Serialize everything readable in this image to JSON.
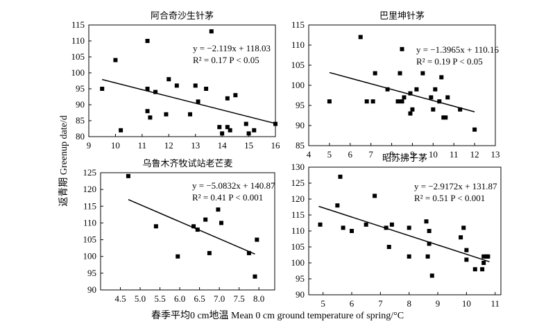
{
  "figure": {
    "ylabel": "返青期 Greenup date/d",
    "xlabel": "春季平均0 cm地温 Mean 0 cm ground temperature of spring/°C"
  },
  "chart_data": [
    {
      "type": "scatter",
      "title": "阿合奇沙生针茅",
      "eq_line": "y = −2.119x + 118.03",
      "stats_line": "R² = 0.17    P < 0.05",
      "xlim": [
        9,
        16
      ],
      "ylim": [
        80,
        115
      ],
      "xticks": [
        9,
        10,
        11,
        12,
        13,
        14,
        15,
        16
      ],
      "yticks": [
        80,
        85,
        90,
        95,
        100,
        105,
        110,
        115
      ],
      "fit": {
        "slope": -2.119,
        "intercept": 118.03,
        "x_range": [
          9.5,
          16
        ]
      },
      "points": [
        [
          9.5,
          95
        ],
        [
          10,
          104
        ],
        [
          10.2,
          82
        ],
        [
          11.2,
          110
        ],
        [
          11.2,
          95
        ],
        [
          11.2,
          88
        ],
        [
          11.3,
          86
        ],
        [
          11.5,
          94
        ],
        [
          11.9,
          87
        ],
        [
          12.0,
          98
        ],
        [
          12.3,
          96
        ],
        [
          12.8,
          87
        ],
        [
          13.0,
          96
        ],
        [
          13.1,
          91
        ],
        [
          13.4,
          95
        ],
        [
          13.6,
          113
        ],
        [
          13.9,
          83
        ],
        [
          14.0,
          81
        ],
        [
          14.2,
          92
        ],
        [
          14.2,
          83
        ],
        [
          14.3,
          82
        ],
        [
          14.5,
          93
        ],
        [
          14.9,
          84
        ],
        [
          15.0,
          81
        ],
        [
          15.2,
          82
        ],
        [
          16.0,
          84
        ]
      ]
    },
    {
      "type": "scatter",
      "title": "巴里坤针茅",
      "eq_line": "y = −1.3965x + 110.16",
      "stats_line": "R² = 0.19    P < 0.05",
      "xlim": [
        4,
        13
      ],
      "ylim": [
        85,
        115
      ],
      "xticks": [
        4,
        5,
        6,
        7,
        8,
        9,
        10,
        11,
        12,
        13
      ],
      "yticks": [
        85,
        90,
        95,
        100,
        105,
        110,
        115
      ],
      "fit": {
        "slope": -1.3965,
        "intercept": 110.16,
        "x_range": [
          5,
          12
        ]
      },
      "points": [
        [
          5.0,
          96
        ],
        [
          6.5,
          112
        ],
        [
          6.8,
          96
        ],
        [
          7.1,
          96
        ],
        [
          7.2,
          103
        ],
        [
          7.8,
          99
        ],
        [
          8.3,
          96
        ],
        [
          8.4,
          103
        ],
        [
          8.5,
          109
        ],
        [
          8.5,
          96
        ],
        [
          8.6,
          97
        ],
        [
          8.9,
          93
        ],
        [
          8.9,
          98
        ],
        [
          9.0,
          94
        ],
        [
          9.2,
          99
        ],
        [
          9.5,
          103
        ],
        [
          9.9,
          97
        ],
        [
          10.0,
          94
        ],
        [
          10.1,
          99
        ],
        [
          10.3,
          96
        ],
        [
          10.4,
          102
        ],
        [
          10.5,
          92
        ],
        [
          10.6,
          92
        ],
        [
          10.7,
          97
        ],
        [
          11.3,
          94
        ],
        [
          12.0,
          89
        ]
      ]
    },
    {
      "type": "scatter",
      "title": "乌鲁木齐牧试站老芒麦",
      "eq_line": "y = −5.0832x + 140.87",
      "stats_line": "R² = 0.41    P < 0.001",
      "xlim": [
        4,
        8.4
      ],
      "ylim": [
        90,
        125
      ],
      "xticks": [
        "4.5",
        "5.0",
        "5.5",
        "6.0",
        "6.5",
        "7.0",
        "7.5",
        "8.0"
      ],
      "yticks": [
        90,
        95,
        100,
        105,
        110,
        115,
        120,
        125
      ],
      "fit": {
        "slope": -5.0832,
        "intercept": 140.87,
        "x_range": [
          4.7,
          7.9
        ]
      },
      "points": [
        [
          4.7,
          124
        ],
        [
          5.4,
          109
        ],
        [
          5.95,
          100
        ],
        [
          6.35,
          109
        ],
        [
          6.45,
          108
        ],
        [
          6.65,
          111
        ],
        [
          6.75,
          101
        ],
        [
          6.97,
          114
        ],
        [
          7.05,
          110
        ],
        [
          7.75,
          101
        ],
        [
          7.9,
          94
        ],
        [
          7.95,
          105
        ]
      ]
    },
    {
      "type": "scatter",
      "title": "昭苏拂子茅",
      "eq_line": "y = −2.9172x + 131.87",
      "stats_line": "R² = 0.51    P < 0.001",
      "xlim": [
        4.5,
        11.2
      ],
      "ylim": [
        90,
        130
      ],
      "xticks": [
        5,
        6,
        7,
        8,
        9,
        10,
        11
      ],
      "yticks": [
        90,
        95,
        100,
        105,
        110,
        115,
        120,
        125,
        130
      ],
      "fit": {
        "slope": -2.9172,
        "intercept": 131.87,
        "x_range": [
          4.85,
          10.8
        ]
      },
      "points": [
        [
          4.9,
          112
        ],
        [
          5.5,
          118
        ],
        [
          5.6,
          127
        ],
        [
          5.7,
          111
        ],
        [
          6.0,
          110
        ],
        [
          6.5,
          112
        ],
        [
          6.8,
          121
        ],
        [
          7.2,
          111
        ],
        [
          7.3,
          105
        ],
        [
          7.4,
          112
        ],
        [
          8.0,
          111
        ],
        [
          8.0,
          102
        ],
        [
          8.6,
          113
        ],
        [
          8.65,
          102
        ],
        [
          8.7,
          110
        ],
        [
          8.7,
          106
        ],
        [
          8.8,
          96
        ],
        [
          9.8,
          108
        ],
        [
          9.9,
          111
        ],
        [
          10.0,
          104
        ],
        [
          10.0,
          101
        ],
        [
          10.3,
          98
        ],
        [
          10.55,
          98
        ],
        [
          10.6,
          102
        ],
        [
          10.6,
          100
        ],
        [
          10.7,
          102
        ],
        [
          10.75,
          102
        ]
      ]
    }
  ]
}
